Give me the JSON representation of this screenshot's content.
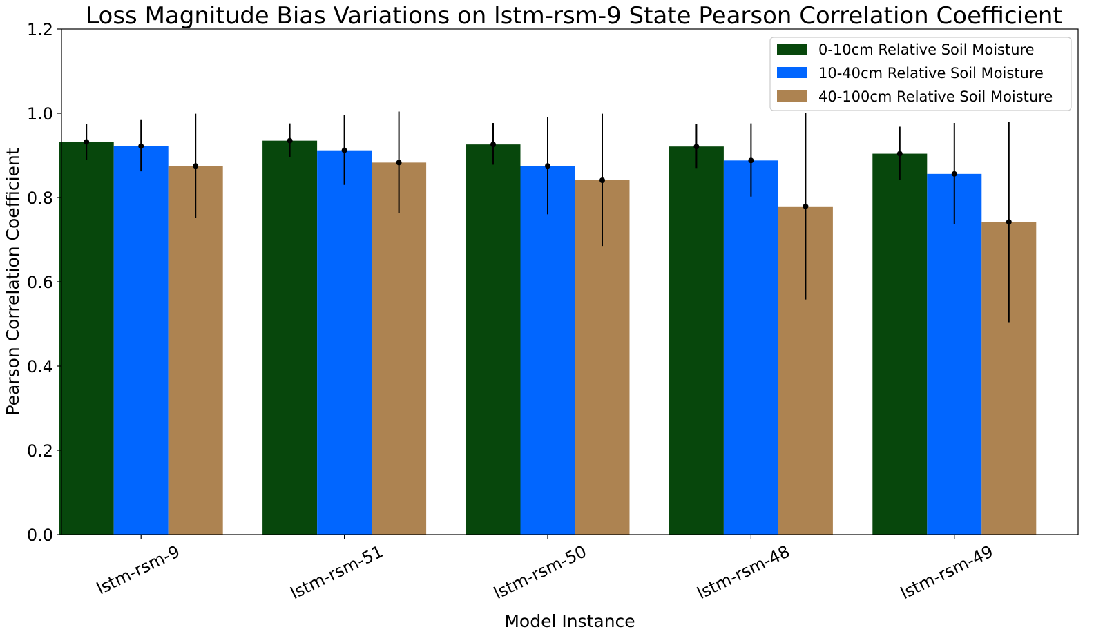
{
  "chart_data": {
    "type": "bar",
    "title": "Loss Magnitude Bias Variations on lstm-rsm-9 State Pearson Correlation Coefficient",
    "xlabel": "Model Instance",
    "ylabel": "Pearson Correlation Coefficient",
    "ylim": [
      0,
      1.2
    ],
    "yticks": [
      "0.0",
      "0.2",
      "0.4",
      "0.6",
      "0.8",
      "1.0",
      "1.2"
    ],
    "categories": [
      "lstm-rsm-9",
      "lstm-rsm-51",
      "lstm-rsm-50",
      "lstm-rsm-48",
      "lstm-rsm-49"
    ],
    "legend_position": "top-right",
    "grid": false,
    "series": [
      {
        "name": "0-10cm Relative Soil Moisture",
        "color": "#07470c",
        "values": [
          0.932,
          0.935,
          0.926,
          0.921,
          0.904
        ],
        "error_low": [
          0.89,
          0.896,
          0.878,
          0.87,
          0.842
        ],
        "error_high": [
          0.974,
          0.976,
          0.977,
          0.974,
          0.968
        ]
      },
      {
        "name": "10-40cm Relative Soil Moisture",
        "color": "#0166ff",
        "values": [
          0.922,
          0.912,
          0.875,
          0.888,
          0.856
        ],
        "error_low": [
          0.862,
          0.83,
          0.76,
          0.802,
          0.736
        ],
        "error_high": [
          0.984,
          0.996,
          0.991,
          0.976,
          0.977
        ]
      },
      {
        "name": "40-100cm Relative Soil Moisture",
        "color": "#ad8351",
        "values": [
          0.875,
          0.883,
          0.841,
          0.779,
          0.742
        ],
        "error_low": [
          0.752,
          0.763,
          0.685,
          0.558,
          0.504
        ],
        "error_high": [
          0.999,
          1.004,
          0.999,
          1.0,
          0.98
        ]
      }
    ]
  }
}
